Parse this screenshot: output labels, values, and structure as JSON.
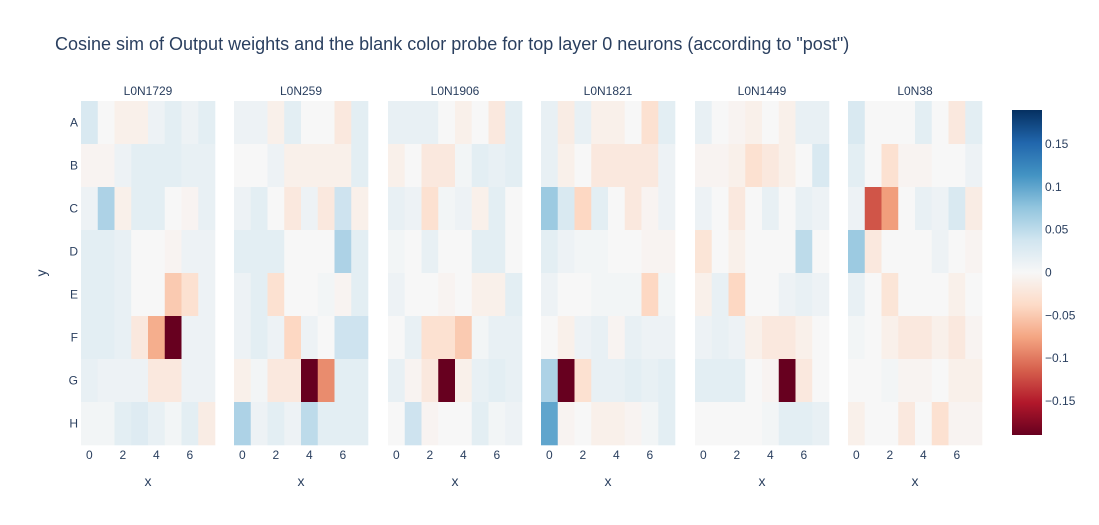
{
  "chart_data": {
    "type": "heatmap",
    "title": "Cosine sim of Output weights and the blank color probe for top layer 0 neurons (according to \"post\")",
    "xlabel": "x",
    "ylabel": "y",
    "x_tick_labels": [
      "0",
      "2",
      "4",
      "6"
    ],
    "x_tick_values": [
      0,
      2,
      4,
      6
    ],
    "y_categories": [
      "A",
      "B",
      "C",
      "D",
      "E",
      "F",
      "G",
      "H"
    ],
    "x_values": [
      0,
      1,
      2,
      3,
      4,
      5,
      6,
      7
    ],
    "colorscale": "RdBu",
    "zmin": -0.19,
    "zmax": 0.19,
    "colorbar_ticks": [
      0.15,
      0.1,
      0.05,
      0,
      -0.05,
      -0.1,
      -0.15
    ],
    "colorbar_tick_labels": [
      "0.15",
      "0.1",
      "0.05",
      "0",
      "−0.05",
      "−0.1",
      "−0.15"
    ],
    "panels": [
      {
        "name": "L0N1729",
        "z": [
          [
            0.03,
            0.0,
            -0.01,
            -0.01,
            0.01,
            0.02,
            0.01,
            0.02
          ],
          [
            -0.005,
            -0.005,
            0.01,
            0.02,
            0.02,
            0.02,
            0.015,
            0.015
          ],
          [
            0.01,
            0.06,
            -0.01,
            0.02,
            0.02,
            0.0,
            -0.005,
            0.015
          ],
          [
            0.02,
            0.02,
            0.015,
            0.0,
            0.0,
            -0.005,
            0.01,
            0.01
          ],
          [
            0.02,
            0.02,
            0.015,
            0.0,
            0.0,
            -0.05,
            -0.03,
            0.01
          ],
          [
            0.02,
            0.02,
            0.015,
            -0.02,
            -0.07,
            -0.19,
            0.01,
            0.01
          ],
          [
            0.015,
            0.01,
            0.01,
            0.01,
            -0.02,
            -0.02,
            0.01,
            0.01
          ],
          [
            0.005,
            0.005,
            0.02,
            0.025,
            0.015,
            0.005,
            0.02,
            -0.015
          ]
        ]
      },
      {
        "name": "L0N259",
        "z": [
          [
            0.01,
            0.01,
            -0.01,
            0.02,
            0.0,
            0.0,
            -0.02,
            0.02
          ],
          [
            0.0,
            0.0,
            0.01,
            -0.01,
            -0.01,
            -0.01,
            -0.01,
            0.02
          ],
          [
            0.01,
            0.02,
            0.0,
            -0.02,
            0.01,
            -0.02,
            0.04,
            -0.01
          ],
          [
            0.02,
            0.02,
            0.02,
            0.0,
            0.0,
            0.0,
            0.06,
            0.02
          ],
          [
            0.01,
            0.02,
            -0.03,
            0.0,
            0.0,
            0.005,
            -0.005,
            0.02
          ],
          [
            0.01,
            0.02,
            0.01,
            -0.04,
            0.01,
            0.0,
            0.04,
            0.04
          ],
          [
            -0.01,
            0.005,
            -0.02,
            -0.02,
            -0.19,
            -0.09,
            0.02,
            0.02
          ],
          [
            0.06,
            0.01,
            0.02,
            0.01,
            0.05,
            0.02,
            0.02,
            0.02
          ]
        ]
      },
      {
        "name": "L0N1906",
        "z": [
          [
            0.015,
            0.015,
            0.015,
            0.0,
            -0.01,
            0.0,
            -0.02,
            0.02
          ],
          [
            -0.01,
            0.0,
            -0.02,
            -0.02,
            0.005,
            0.02,
            0.015,
            0.02
          ],
          [
            0.015,
            0.01,
            -0.03,
            0.005,
            0.01,
            -0.01,
            0.02,
            0.0
          ],
          [
            0.005,
            0.0,
            0.015,
            0.0,
            0.0,
            0.02,
            0.02,
            0.0
          ],
          [
            0.01,
            0.0,
            0.0,
            -0.005,
            0.0,
            -0.01,
            -0.01,
            0.02
          ],
          [
            0.0,
            0.015,
            -0.03,
            -0.03,
            -0.05,
            0.005,
            0.015,
            0.015
          ],
          [
            0.015,
            -0.005,
            -0.02,
            -0.19,
            -0.01,
            0.015,
            0.02,
            0.015
          ],
          [
            0.0,
            0.04,
            -0.005,
            0.0,
            0.0,
            0.02,
            0.005,
            0.01
          ]
        ]
      },
      {
        "name": "L0N1821",
        "z": [
          [
            0.015,
            -0.015,
            0.015,
            -0.01,
            -0.01,
            0.0,
            -0.03,
            0.02
          ],
          [
            0.015,
            -0.01,
            0.0,
            -0.02,
            -0.02,
            -0.02,
            -0.02,
            0.01
          ],
          [
            0.07,
            0.03,
            -0.04,
            0.02,
            0.0,
            -0.02,
            -0.005,
            0.01
          ],
          [
            0.02,
            0.01,
            0.005,
            0.005,
            0.0,
            0.0,
            -0.005,
            -0.005
          ],
          [
            0.01,
            0.0,
            0.0,
            0.005,
            0.005,
            0.005,
            -0.04,
            0.005
          ],
          [
            0.0,
            -0.01,
            0.01,
            0.015,
            -0.005,
            0.015,
            0.01,
            0.01
          ],
          [
            0.06,
            -0.19,
            -0.03,
            0.015,
            0.015,
            0.02,
            0.015,
            0.02
          ],
          [
            0.1,
            -0.005,
            0.0,
            -0.01,
            -0.01,
            -0.005,
            0.005,
            0.02
          ]
        ]
      },
      {
        "name": "L0N1449",
        "z": [
          [
            0.015,
            0.0,
            -0.005,
            -0.01,
            0.0,
            -0.01,
            0.015,
            0.015
          ],
          [
            -0.005,
            -0.005,
            -0.01,
            -0.03,
            -0.02,
            -0.01,
            0.0,
            0.03
          ],
          [
            0.01,
            0.0,
            -0.02,
            0.0,
            0.015,
            0.0,
            0.015,
            0.01
          ],
          [
            -0.025,
            0.0,
            -0.01,
            0.0,
            0.0,
            0.0,
            0.05,
            0.0
          ],
          [
            -0.01,
            0.015,
            -0.04,
            0.0,
            0.0,
            0.01,
            0.015,
            0.01
          ],
          [
            0.01,
            0.015,
            0.01,
            -0.01,
            -0.02,
            -0.02,
            -0.01,
            0.0
          ],
          [
            0.02,
            0.02,
            0.02,
            0.0,
            -0.005,
            -0.19,
            -0.02,
            0.0
          ],
          [
            0.0,
            0.0,
            0.0,
            0.0,
            0.005,
            0.02,
            0.02,
            0.015
          ]
        ]
      },
      {
        "name": "L0N38",
        "z": [
          [
            0.03,
            0.0,
            0.0,
            0.0,
            0.02,
            0.0,
            -0.02,
            0.02
          ],
          [
            0.02,
            0.0,
            -0.03,
            -0.005,
            -0.005,
            0.0,
            0.0,
            0.01
          ],
          [
            0.01,
            -0.12,
            -0.08,
            0.0,
            0.015,
            0.01,
            0.03,
            -0.015
          ],
          [
            0.07,
            -0.02,
            0.0,
            0.0,
            0.0,
            0.01,
            0.0,
            -0.005
          ],
          [
            0.015,
            0.0,
            -0.025,
            0.0,
            0.0,
            0.0,
            -0.01,
            0.0
          ],
          [
            0.005,
            0.0,
            -0.01,
            -0.02,
            -0.02,
            -0.01,
            -0.02,
            -0.005
          ],
          [
            0.0,
            0.0,
            0.005,
            -0.005,
            -0.005,
            0.0,
            -0.01,
            -0.01
          ],
          [
            -0.01,
            0.0,
            0.0,
            -0.02,
            0.0,
            -0.03,
            -0.005,
            -0.005
          ]
        ]
      }
    ]
  }
}
